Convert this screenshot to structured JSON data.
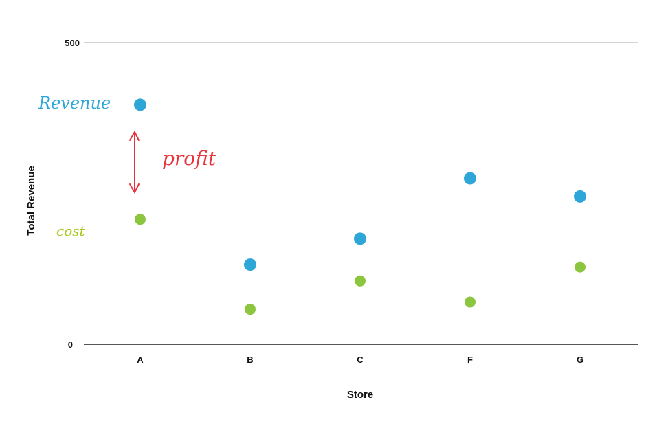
{
  "chart_data": {
    "type": "scatter",
    "title": "",
    "xlabel": "Store",
    "ylabel": "Total Revenue",
    "categories": [
      "A",
      "B",
      "C",
      "F",
      "G"
    ],
    "ylim": [
      0,
      500
    ],
    "yticks": [
      "0",
      "500"
    ],
    "series": [
      {
        "name": "Revenue",
        "color": "#2ea6d8",
        "values": [
          397,
          132,
          175,
          275,
          245
        ]
      },
      {
        "name": "Cost",
        "color": "#8cc63f",
        "values": [
          207,
          58,
          105,
          70,
          128
        ]
      }
    ],
    "annotations": {
      "revenue_note": "Revenue",
      "cost_note": "cost",
      "profit_note": "profit",
      "profit_color": "#e8323c"
    },
    "grid": false,
    "legend": "none"
  }
}
